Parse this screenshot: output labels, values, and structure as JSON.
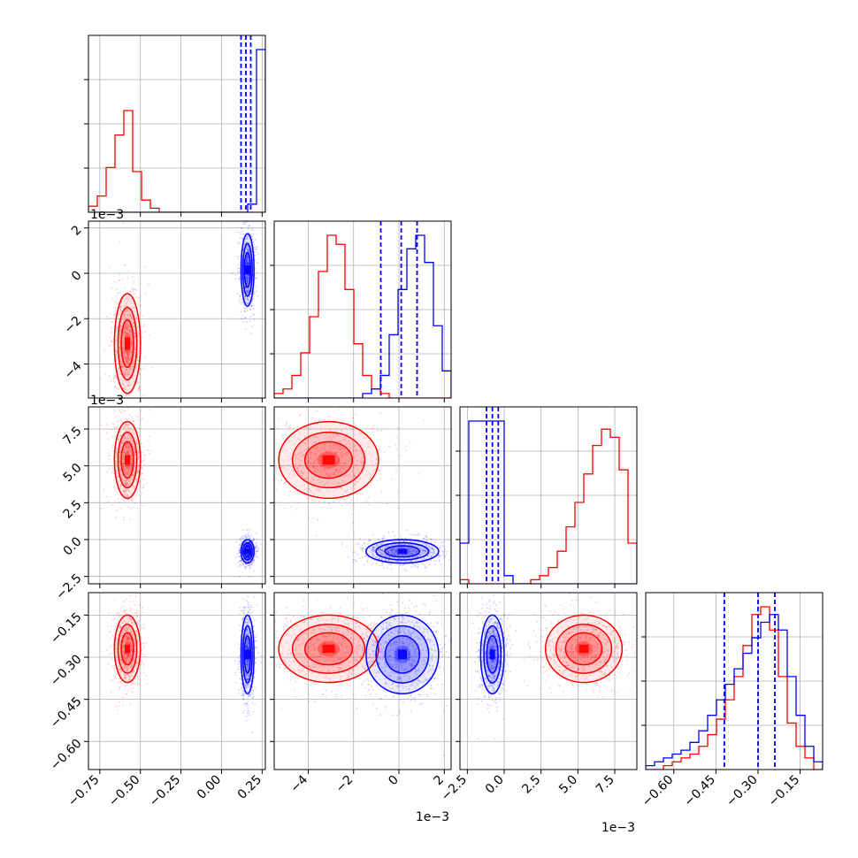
{
  "chart_data": {
    "type": "corner",
    "colors": {
      "series_a": "#ff0000",
      "series_b": "#0000ff",
      "grid": "#b0b0b0"
    },
    "series": [
      {
        "color": "#ff0000",
        "centers": [
          -0.58,
          -0.0031,
          0.0054,
          -0.27
        ],
        "sigmas": [
          0.04,
          0.0011,
          0.0013,
          0.06
        ]
      },
      {
        "color": "#0000ff",
        "centers": [
          0.16,
          0.00015,
          -0.0008,
          -0.29
        ],
        "sigmas": [
          0.02,
          0.0008,
          0.0004,
          0.07
        ]
      }
    ],
    "quantile_lines": [
      [
        0.12,
        0.15,
        0.18
      ],
      [
        -0.0008,
        0.0001,
        0.0008
      ],
      [
        -0.0012,
        -0.0008,
        -0.0004
      ],
      [
        -0.42,
        -0.3,
        -0.24
      ]
    ],
    "axes": [
      {
        "range": [
          -0.82,
          0.27
        ],
        "ticks": [
          -0.75,
          -0.5,
          -0.25,
          0.0,
          0.25
        ],
        "tick_labels": [
          "−0.75",
          "−0.50",
          "−0.25",
          "0.00",
          "0.25"
        ],
        "offset": ""
      },
      {
        "range": [
          -0.0055,
          0.0023
        ],
        "ticks": [
          -0.004,
          -0.002,
          0.0,
          0.002
        ],
        "tick_labels": [
          "−4",
          "−2",
          "0",
          "2"
        ],
        "offset": "1e−3"
      },
      {
        "range": [
          -0.003,
          0.009
        ],
        "ticks": [
          -0.0025,
          0.0,
          0.0025,
          0.005,
          0.0075
        ],
        "tick_labels": [
          "−2.5",
          "0.0",
          "2.5",
          "5.0",
          "7.5"
        ],
        "offset": "1e−3"
      },
      {
        "range": [
          -0.7,
          -0.07
        ],
        "ticks": [
          -0.6,
          -0.45,
          -0.3,
          -0.15
        ],
        "tick_labels": [
          "−0.60",
          "−0.45",
          "−0.30",
          "−0.15"
        ],
        "offset": ""
      }
    ],
    "hist_heights": [
      {
        "red": [
          3,
          8,
          22,
          38,
          50,
          20,
          6,
          2,
          0,
          0,
          0,
          0,
          0,
          0,
          0,
          0,
          0,
          0,
          0,
          0
        ],
        "blue": [
          0,
          0,
          0,
          0,
          0,
          0,
          0,
          0,
          0,
          0,
          0,
          0,
          0,
          0,
          0,
          0,
          0,
          0,
          4,
          80
        ]
      },
      {
        "red": [
          1,
          2,
          5,
          10,
          18,
          28,
          36,
          34,
          24,
          12,
          5,
          2,
          1,
          0,
          0,
          0,
          0,
          0,
          0,
          0
        ],
        "blue": [
          0,
          0,
          0,
          0,
          0,
          0,
          0,
          0,
          0,
          0,
          1,
          2,
          5,
          14,
          24,
          33,
          36,
          30,
          16,
          6
        ]
      },
      {
        "red": [
          1,
          0,
          0,
          0,
          0,
          0,
          0,
          0,
          1,
          2,
          4,
          8,
          14,
          20,
          27,
          34,
          38,
          36,
          28,
          10
        ],
        "blue": [
          10,
          40,
          40,
          40,
          40,
          2,
          0,
          0,
          0,
          0,
          0,
          0,
          0,
          0,
          0,
          0,
          0,
          0,
          0,
          0
        ]
      },
      {
        "red": [
          0,
          0,
          1,
          2,
          3,
          4,
          6,
          9,
          13,
          18,
          24,
          32,
          40,
          42,
          36,
          24,
          12,
          6,
          3,
          0
        ],
        "blue": [
          1,
          2,
          3,
          4,
          5,
          7,
          10,
          14,
          18,
          22,
          26,
          30,
          34,
          38,
          40,
          36,
          24,
          14,
          6,
          2
        ]
      }
    ]
  }
}
